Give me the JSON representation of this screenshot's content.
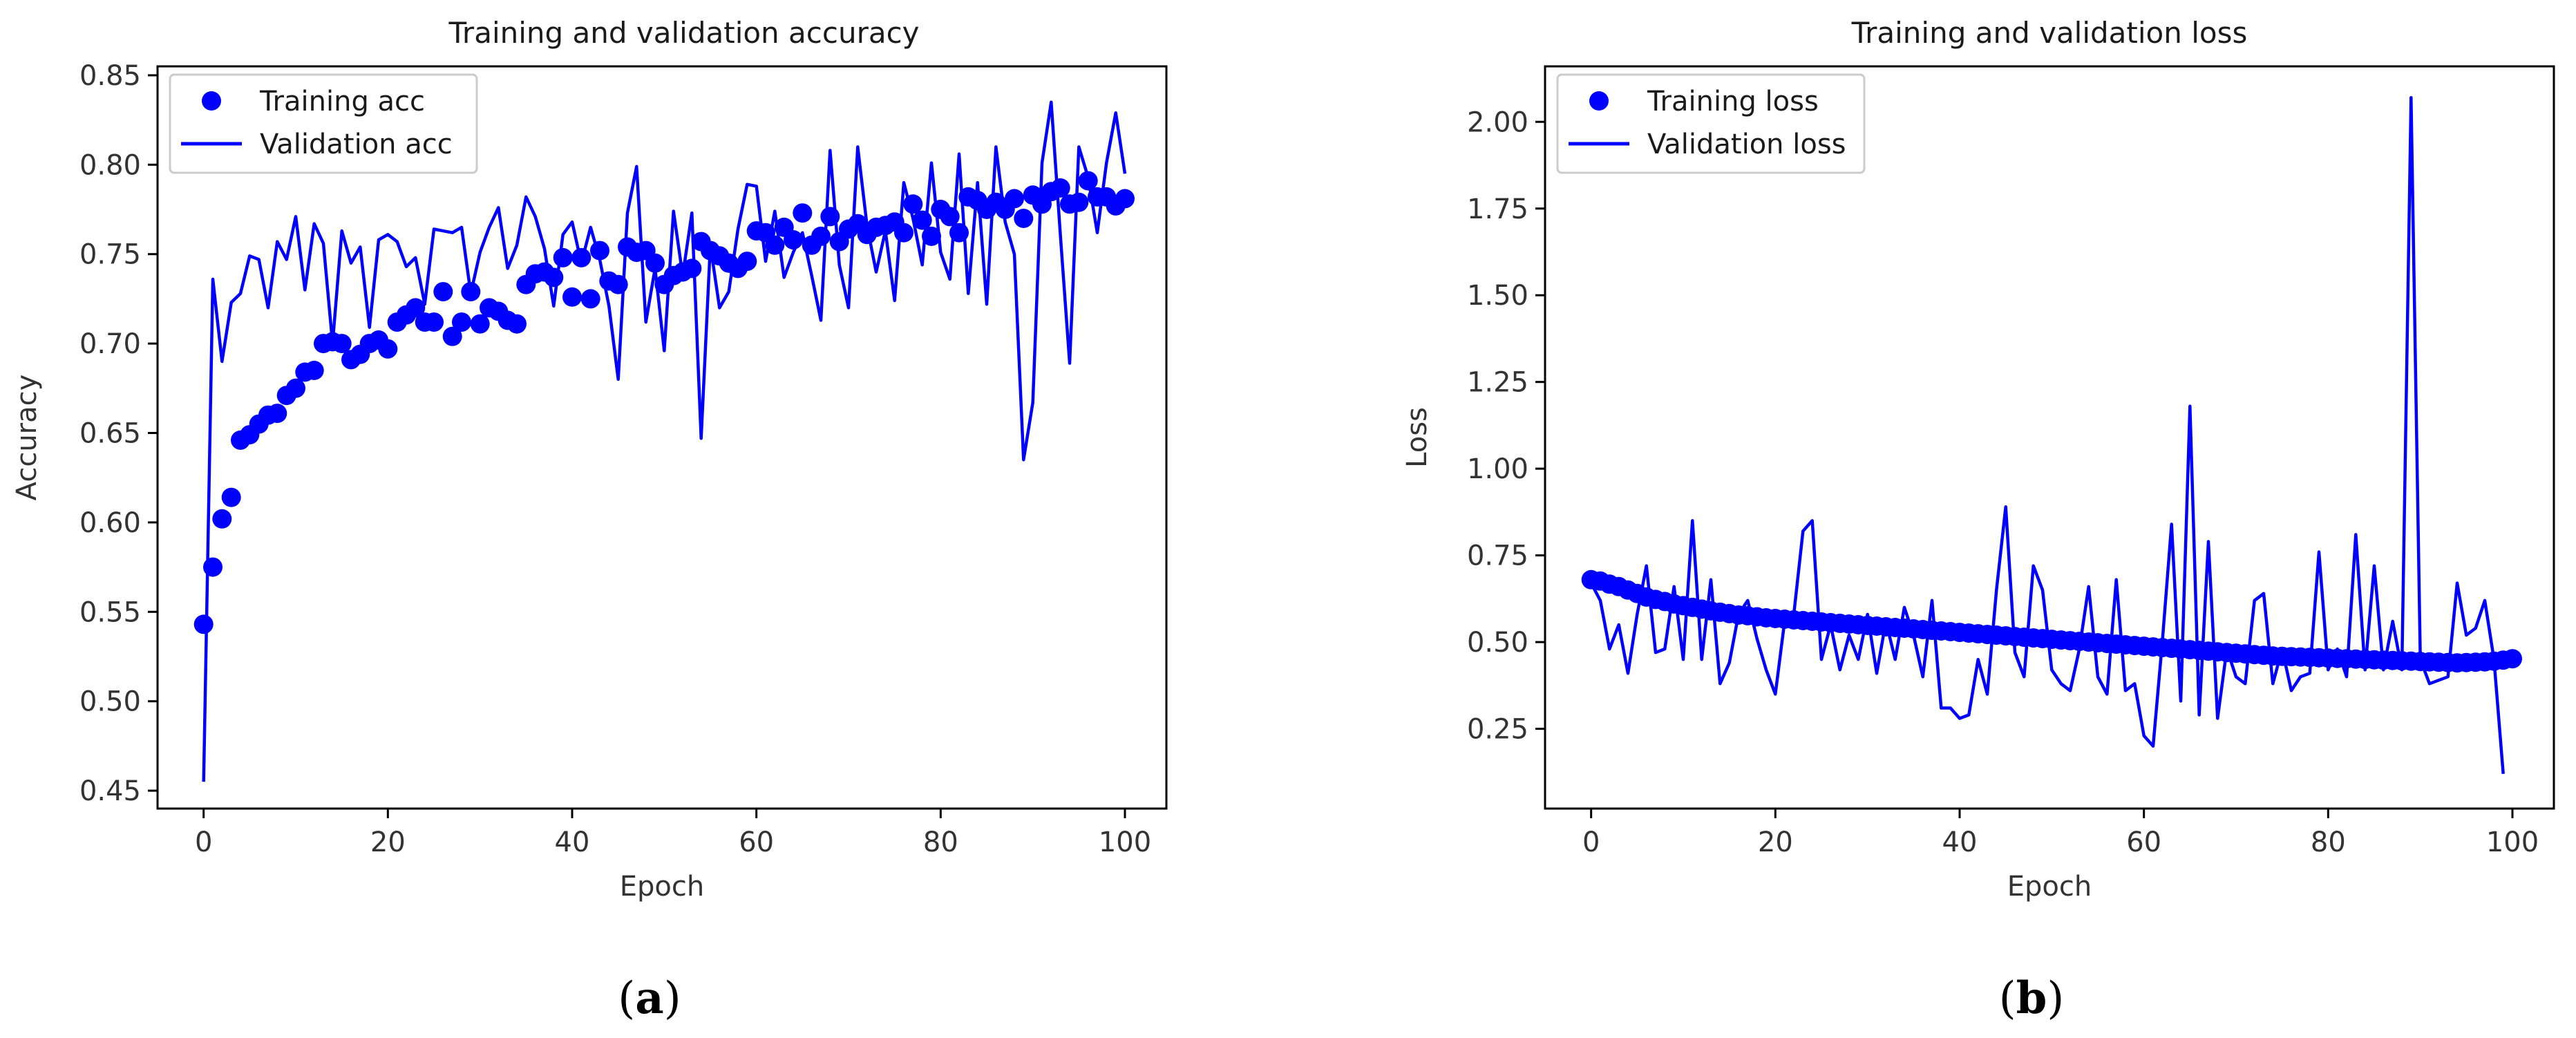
{
  "colors": {
    "series": "#0000ff",
    "axis": "#000000",
    "text": "#333333"
  },
  "chart_data": [
    {
      "panel_label": "a",
      "type": "line",
      "title": "Training and validation accuracy",
      "xlabel": "Epoch",
      "ylabel": "Accuracy",
      "xlim": [
        -5,
        104.5
      ],
      "ylim": [
        0.44,
        0.855
      ],
      "xticks": [
        0,
        20,
        40,
        60,
        80,
        100
      ],
      "xtick_labels": [
        "0",
        "20",
        "40",
        "60",
        "80",
        "100"
      ],
      "yticks": [
        0.45,
        0.5,
        0.55,
        0.6,
        0.65,
        0.7,
        0.75,
        0.8,
        0.85
      ],
      "ytick_labels": [
        "0.45",
        "0.50",
        "0.55",
        "0.60",
        "0.65",
        "0.70",
        "0.75",
        "0.80",
        "0.85"
      ],
      "grid": false,
      "legend_position": "top-left",
      "series": [
        {
          "name": "Training acc",
          "style": "markers",
          "values": [
            0.543,
            0.575,
            0.602,
            0.614,
            0.646,
            0.649,
            0.655,
            0.66,
            0.661,
            0.671,
            0.675,
            0.684,
            0.685,
            0.7,
            0.701,
            0.7,
            0.691,
            0.694,
            0.7,
            0.702,
            0.697,
            0.712,
            0.716,
            0.72,
            0.712,
            0.712,
            0.729,
            0.704,
            0.712,
            0.729,
            0.711,
            0.72,
            0.718,
            0.713,
            0.711,
            0.733,
            0.739,
            0.74,
            0.737,
            0.748,
            0.726,
            0.748,
            0.725,
            0.752,
            0.735,
            0.733,
            0.754,
            0.751,
            0.752,
            0.745,
            0.733,
            0.738,
            0.74,
            0.742,
            0.757,
            0.752,
            0.749,
            0.745,
            0.742,
            0.746,
            0.763,
            0.762,
            0.755,
            0.765,
            0.758,
            0.773,
            0.755,
            0.76,
            0.771,
            0.757,
            0.764,
            0.767,
            0.761,
            0.765,
            0.766,
            0.768,
            0.762,
            0.778,
            0.769,
            0.76,
            0.775,
            0.771,
            0.762,
            0.782,
            0.78,
            0.775,
            0.779,
            0.775,
            0.781,
            0.77,
            0.783,
            0.778,
            0.785,
            0.787,
            0.778,
            0.779,
            0.791,
            0.782,
            0.782,
            0.777,
            0.781
          ]
        },
        {
          "name": "Validation acc",
          "style": "line",
          "values": [
            0.455,
            0.736,
            0.69,
            0.723,
            0.728,
            0.749,
            0.747,
            0.72,
            0.757,
            0.747,
            0.771,
            0.73,
            0.767,
            0.756,
            0.7,
            0.763,
            0.745,
            0.754,
            0.709,
            0.758,
            0.761,
            0.757,
            0.743,
            0.748,
            0.722,
            0.764,
            0.763,
            0.762,
            0.765,
            0.728,
            0.751,
            0.765,
            0.776,
            0.742,
            0.755,
            0.782,
            0.771,
            0.753,
            0.721,
            0.761,
            0.768,
            0.745,
            0.765,
            0.747,
            0.721,
            0.68,
            0.773,
            0.799,
            0.712,
            0.742,
            0.696,
            0.774,
            0.738,
            0.773,
            0.647,
            0.755,
            0.72,
            0.729,
            0.764,
            0.789,
            0.788,
            0.746,
            0.774,
            0.737,
            0.751,
            0.762,
            0.738,
            0.713,
            0.808,
            0.744,
            0.72,
            0.81,
            0.766,
            0.74,
            0.763,
            0.724,
            0.79,
            0.77,
            0.744,
            0.801,
            0.751,
            0.736,
            0.806,
            0.728,
            0.79,
            0.722,
            0.81,
            0.768,
            0.75,
            0.635,
            0.667,
            0.801,
            0.835,
            0.76,
            0.689,
            0.81,
            0.793,
            0.762,
            0.801,
            0.829,
            0.795
          ]
        }
      ]
    },
    {
      "panel_label": "b",
      "type": "line",
      "title": "Training and validation loss",
      "xlabel": "Epoch",
      "ylabel": "Loss",
      "xlim": [
        -5,
        104.5
      ],
      "ylim": [
        0.02,
        2.16
      ],
      "xticks": [
        0,
        20,
        40,
        60,
        80,
        100
      ],
      "xtick_labels": [
        "0",
        "20",
        "40",
        "60",
        "80",
        "100"
      ],
      "yticks": [
        0.25,
        0.5,
        0.75,
        1.0,
        1.25,
        1.5,
        1.75,
        2.0
      ],
      "ytick_labels": [
        "0.25",
        "0.50",
        "0.75",
        "1.00",
        "1.25",
        "1.50",
        "1.75",
        "2.00"
      ],
      "grid": false,
      "legend_position": "top-left",
      "series": [
        {
          "name": "Training loss",
          "style": "markers",
          "values": [
            0.68,
            0.676,
            0.667,
            0.66,
            0.65,
            0.64,
            0.63,
            0.623,
            0.617,
            0.61,
            0.605,
            0.6,
            0.595,
            0.59,
            0.586,
            0.582,
            0.578,
            0.576,
            0.573,
            0.57,
            0.568,
            0.566,
            0.564,
            0.562,
            0.56,
            0.558,
            0.556,
            0.554,
            0.552,
            0.55,
            0.548,
            0.546,
            0.544,
            0.542,
            0.54,
            0.538,
            0.536,
            0.534,
            0.532,
            0.53,
            0.528,
            0.526,
            0.524,
            0.522,
            0.52,
            0.518,
            0.516,
            0.514,
            0.512,
            0.51,
            0.508,
            0.506,
            0.504,
            0.502,
            0.5,
            0.498,
            0.496,
            0.494,
            0.492,
            0.49,
            0.488,
            0.486,
            0.484,
            0.482,
            0.48,
            0.478,
            0.476,
            0.474,
            0.472,
            0.47,
            0.468,
            0.466,
            0.464,
            0.462,
            0.46,
            0.459,
            0.458,
            0.457,
            0.456,
            0.455,
            0.454,
            0.453,
            0.452,
            0.451,
            0.45,
            0.449,
            0.448,
            0.447,
            0.446,
            0.445,
            0.444,
            0.443,
            0.442,
            0.441,
            0.44,
            0.441,
            0.442,
            0.443,
            0.445,
            0.448,
            0.452
          ]
        },
        {
          "name": "Validation loss",
          "style": "line",
          "values": [
            0.67,
            0.62,
            0.48,
            0.55,
            0.41,
            0.58,
            0.72,
            0.47,
            0.48,
            0.66,
            0.45,
            0.85,
            0.45,
            0.68,
            0.38,
            0.44,
            0.58,
            0.62,
            0.51,
            0.42,
            0.35,
            0.56,
            0.58,
            0.82,
            0.85,
            0.45,
            0.55,
            0.42,
            0.52,
            0.45,
            0.58,
            0.41,
            0.56,
            0.45,
            0.6,
            0.52,
            0.4,
            0.62,
            0.31,
            0.31,
            0.28,
            0.29,
            0.45,
            0.35,
            0.65,
            0.89,
            0.47,
            0.4,
            0.72,
            0.65,
            0.42,
            0.38,
            0.36,
            0.48,
            0.66,
            0.4,
            0.35,
            0.68,
            0.36,
            0.38,
            0.23,
            0.2,
            0.5,
            0.84,
            0.33,
            1.18,
            0.29,
            0.79,
            0.28,
            0.48,
            0.4,
            0.38,
            0.62,
            0.64,
            0.38,
            0.48,
            0.36,
            0.4,
            0.41,
            0.76,
            0.42,
            0.48,
            0.4,
            0.81,
            0.42,
            0.72,
            0.42,
            0.56,
            0.42,
            2.07,
            0.45,
            0.38,
            0.39,
            0.4,
            0.67,
            0.52,
            0.54,
            0.62,
            0.45,
            0.12
          ]
        }
      ]
    }
  ]
}
